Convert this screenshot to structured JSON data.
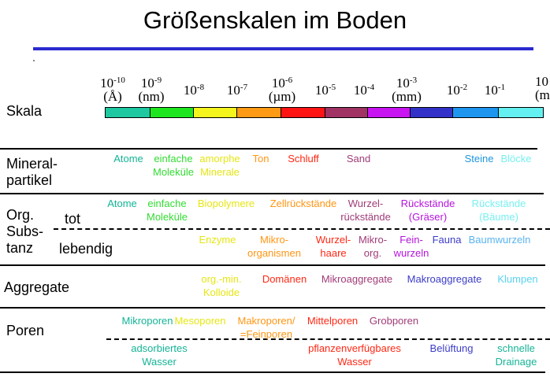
{
  "title": "Größenskalen im Boden",
  "scale": {
    "label": "Skala",
    "ticks": [
      {
        "base": "10",
        "exp": "-10",
        "unit": "(Å)"
      },
      {
        "base": "10",
        "exp": "-9",
        "unit": "(nm)"
      },
      {
        "base": "10",
        "exp": "-8",
        "unit": ""
      },
      {
        "base": "10",
        "exp": "-7",
        "unit": ""
      },
      {
        "base": "10",
        "exp": "-6",
        "unit": "(µm)"
      },
      {
        "base": "10",
        "exp": "-5",
        "unit": ""
      },
      {
        "base": "10",
        "exp": "-4",
        "unit": ""
      },
      {
        "base": "10",
        "exp": "-3",
        "unit": "(mm)"
      },
      {
        "base": "10",
        "exp": "-2",
        "unit": ""
      },
      {
        "base": "10",
        "exp": "-1",
        "unit": ""
      },
      {
        "base": "10",
        "exp": "",
        "unit": "(m"
      }
    ],
    "colors": [
      "#1ec8a0",
      "#1ee61e",
      "#f5f51e",
      "#ff9a14",
      "#ff1414",
      "#a03264",
      "#c814f0",
      "#3232c8",
      "#1e96f0",
      "#64f0f0"
    ]
  },
  "rows": {
    "mineral": {
      "label_line1": "Mineral-",
      "label_line2": "partikel",
      "items": [
        {
          "l1": "Atome",
          "l2": "",
          "color": "#14b496"
        },
        {
          "l1": "einfache",
          "l2": "Moleküle",
          "color": "#32dc32"
        },
        {
          "l1": "amorphe",
          "l2": "Minerale",
          "color": "#e6e614"
        },
        {
          "l1": "Ton",
          "l2": "",
          "color": "#ff9614"
        },
        {
          "l1": "Schluff",
          "l2": "",
          "color": "#ff2814"
        },
        {
          "l1": "Sand",
          "l2": "",
          "color": "#a03c78"
        },
        {
          "l1": "Steine",
          "l2": "",
          "color": "#1e96dc"
        },
        {
          "l1": "Blöcke",
          "l2": "",
          "color": "#78f0f0"
        }
      ]
    },
    "org": {
      "label_line1": "Org.",
      "label_line2": "Subs-",
      "label_line3": "tanz",
      "tot_label": "tot",
      "lebendig_label": "lebendig",
      "tot_items": [
        {
          "l1": "Atome",
          "l2": "",
          "color": "#14b496"
        },
        {
          "l1": "einfache",
          "l2": "Moleküle",
          "color": "#32dc32"
        },
        {
          "l1": "Biopolymere",
          "l2": "",
          "color": "#e6e614"
        },
        {
          "l1": "Zellrückstände",
          "l2": "",
          "color": "#ff9614"
        },
        {
          "l1": "Wurzel-",
          "l2": "rückstände",
          "color": "#a03c78"
        },
        {
          "l1": "Rückstände",
          "l2": "(Gräser)",
          "color": "#b414dc"
        },
        {
          "l1": "Rückstände",
          "l2": "(Bäume)",
          "color": "#78f0f0"
        }
      ],
      "lebendig_items": [
        {
          "l1": "Enzyme",
          "l2": "",
          "color": "#e6e614"
        },
        {
          "l1": "Mikro-",
          "l2": "organismen",
          "color": "#ff9614"
        },
        {
          "l1": "Wurzel-",
          "l2": "haare",
          "color": "#ff2814"
        },
        {
          "l1": "Mikro-",
          "l2": "org.",
          "color": "#a03c78"
        },
        {
          "l1": "Fein-",
          "l2": "wurzeln",
          "color": "#b414dc"
        },
        {
          "l1": "Fauna",
          "l2": "",
          "color": "#3c3cc8"
        },
        {
          "l1": "Baumwurzeln",
          "l2": "",
          "color": "#5ab4f0"
        }
      ]
    },
    "aggregate": {
      "label": "Aggregate",
      "items": [
        {
          "l1": "org.-min.",
          "l2": "Kolloide",
          "color": "#e6e614"
        },
        {
          "l1": "Domänen",
          "l2": "",
          "color": "#ff2814"
        },
        {
          "l1": "Mikroaggregate",
          "l2": "",
          "color": "#a03c78"
        },
        {
          "l1": "Makroaggregate",
          "l2": "",
          "color": "#3c3cc8"
        },
        {
          "l1": "Klumpen",
          "l2": "",
          "color": "#5ad2f0"
        }
      ]
    },
    "poren": {
      "label": "Poren",
      "items": [
        {
          "l1": "Mikroporen",
          "l2": "",
          "color": "#14b496"
        },
        {
          "l1": "Mesoporen",
          "l2": "",
          "color": "#e6e614"
        },
        {
          "l1": "Makroporen/",
          "l2": "=Feinporen",
          "color": "#ff9614"
        },
        {
          "l1": "Mittelporen",
          "l2": "",
          "color": "#ff2814"
        },
        {
          "l1": "Grobporen",
          "l2": "",
          "color": "#a03c78"
        }
      ],
      "wasser_items": [
        {
          "l1": "adsorbiertes",
          "l2": "Wasser",
          "color": "#14b496"
        },
        {
          "l1": "pflanzenverfügbares",
          "l2": "Wasser",
          "color": "#ff2814"
        },
        {
          "l1": "Belüftung",
          "l2": "",
          "color": "#3c3cc8"
        },
        {
          "l1": "schnelle",
          "l2": "Drainage",
          "color": "#14b496"
        }
      ]
    }
  }
}
